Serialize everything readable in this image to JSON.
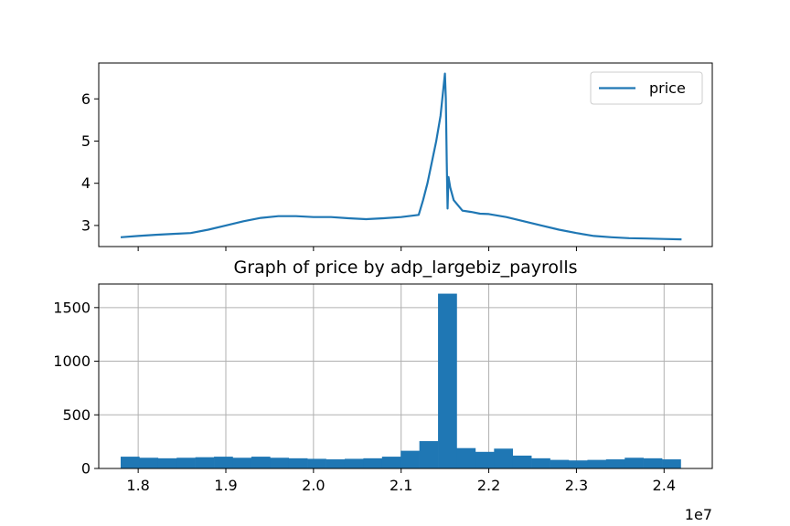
{
  "colors": {
    "series": "#1f77b4",
    "axis": "#000000",
    "grid": "#b0b0b0",
    "legend_border": "#cccccc",
    "background": "#ffffff"
  },
  "chart_data": [
    {
      "type": "line",
      "title": "",
      "xlabel": "",
      "ylabel": "",
      "xlim": [
        17350000,
        24350000
      ],
      "ylim": [
        2.5,
        6.85
      ],
      "xticks": [
        17800000,
        18800000,
        19800000,
        20800000,
        21800000,
        22800000,
        23800000
      ],
      "xtick_labels_shown": false,
      "yticks": [
        3,
        4,
        5,
        6
      ],
      "ytick_labels": [
        "3",
        "4",
        "5",
        "6"
      ],
      "grid": false,
      "legend": {
        "placement": "top-right",
        "entries": [
          "price"
        ]
      },
      "series": [
        {
          "name": "price",
          "x": [
            17600000,
            17800000,
            18000000,
            18200000,
            18400000,
            18600000,
            18800000,
            19000000,
            19200000,
            19400000,
            19600000,
            19800000,
            20000000,
            20200000,
            20400000,
            20600000,
            20800000,
            21000000,
            21050000,
            21100000,
            21150000,
            21200000,
            21250000,
            21300000,
            21310000,
            21320000,
            21330000,
            21335000,
            21340000,
            21360000,
            21400000,
            21500000,
            21600000,
            21700000,
            21800000,
            22000000,
            22200000,
            22400000,
            22600000,
            22800000,
            23000000,
            23200000,
            23400000,
            23600000,
            23800000,
            24000000
          ],
          "y": [
            2.72,
            2.75,
            2.78,
            2.8,
            2.82,
            2.9,
            3.0,
            3.1,
            3.18,
            3.22,
            3.22,
            3.2,
            3.2,
            3.17,
            3.15,
            3.17,
            3.2,
            3.25,
            3.6,
            4.0,
            4.5,
            5.0,
            5.6,
            6.6,
            6.0,
            4.5,
            3.4,
            3.8,
            4.15,
            3.9,
            3.6,
            3.35,
            3.32,
            3.28,
            3.27,
            3.2,
            3.1,
            3.0,
            2.9,
            2.82,
            2.75,
            2.72,
            2.7,
            2.69,
            2.68,
            2.67
          ]
        }
      ]
    },
    {
      "type": "bar",
      "title": "Graph of price by adp_largebiz_payrolls",
      "xlabel": "",
      "ylabel": "",
      "xlim": [
        17350000,
        24350000
      ],
      "ylim": [
        0,
        1720
      ],
      "xticks": [
        17800000,
        18800000,
        19800000,
        20800000,
        21800000,
        22800000,
        23800000
      ],
      "xtick_labels": [
        "1.8",
        "1.9",
        "2.0",
        "2.1",
        "2.2",
        "2.3",
        "2.4"
      ],
      "x_offset_label": "1e7",
      "yticks": [
        0,
        500,
        1000,
        1500
      ],
      "ytick_labels": [
        "0",
        "500",
        "1000",
        "1500"
      ],
      "grid": true,
      "bin_start": 17600000,
      "bin_width": 213000,
      "series": [
        {
          "values": [
            110,
            100,
            95,
            100,
            105,
            110,
            100,
            110,
            100,
            95,
            90,
            85,
            90,
            95,
            110,
            165,
            255,
            1630,
            190,
            155,
            185,
            120,
            95,
            80,
            75,
            80,
            85,
            100,
            95,
            85
          ]
        }
      ]
    }
  ]
}
